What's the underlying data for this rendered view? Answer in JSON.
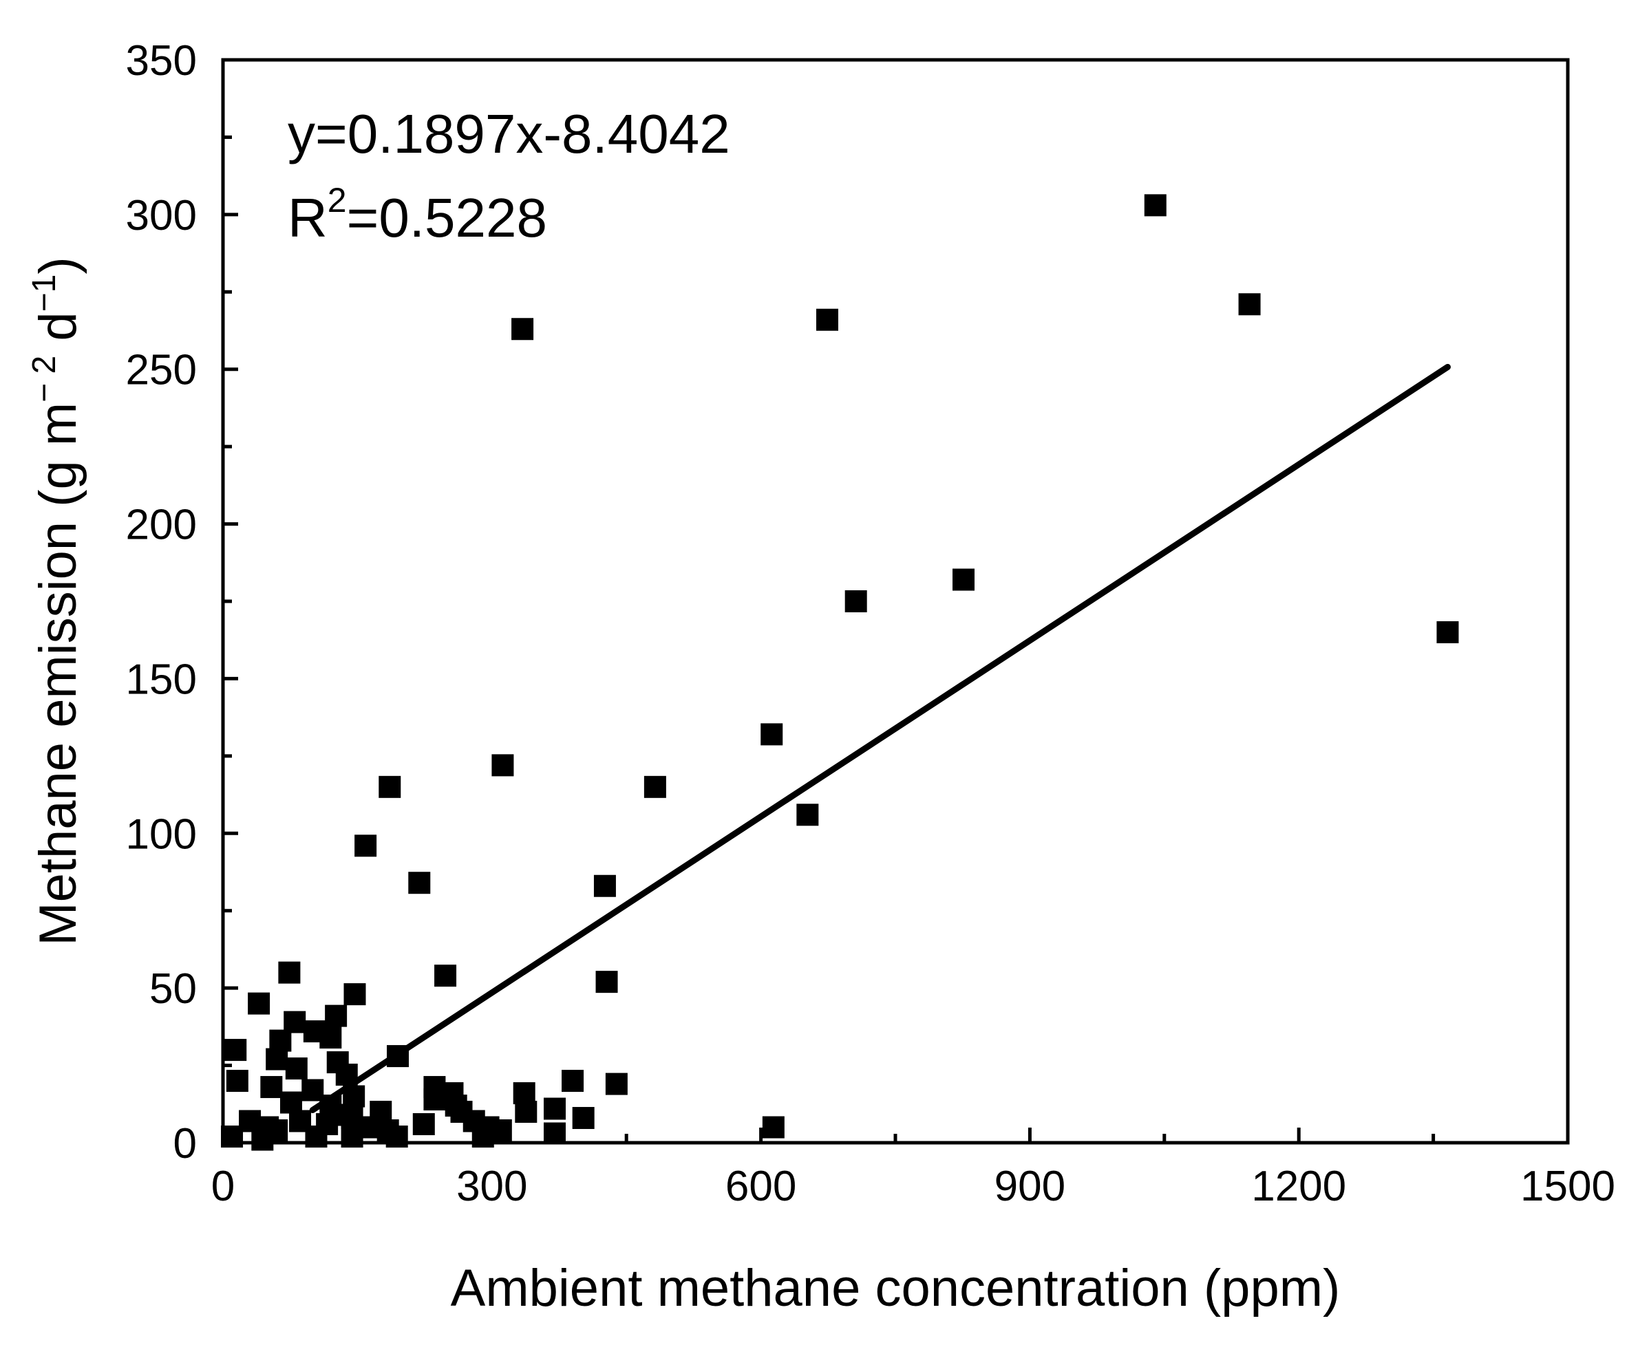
{
  "chart_data": {
    "type": "scatter",
    "xlabel": "Ambient methane concentration (ppm)",
    "ylabel": {
      "main": "Methane emission (g m",
      "exp1": "− 2",
      "mid": " d",
      "exp2": "−1",
      "end": ")"
    },
    "xlim": [
      0,
      1500
    ],
    "ylim": [
      0,
      350
    ],
    "xticks": [
      0,
      300,
      600,
      900,
      1200,
      1500
    ],
    "yticks": [
      0,
      50,
      100,
      150,
      200,
      250,
      300,
      350
    ],
    "grid": false,
    "legend": "none",
    "marker": "square",
    "colors": {
      "marker": "#000000",
      "line": "#000000",
      "axes": "#000000"
    },
    "annotation": {
      "equation": "y=0.1897x-8.4042",
      "r2_prefix": "R",
      "r2_sup": "2",
      "r2_value": "=0.5228"
    },
    "fit_line": {
      "slope": 0.1897,
      "intercept": -8.4042,
      "x_start": 100,
      "x_end": 1366
    },
    "points": [
      [
        1040,
        303
      ],
      [
        1145,
        271
      ],
      [
        674,
        266
      ],
      [
        334,
        263
      ],
      [
        1366,
        165
      ],
      [
        826,
        182
      ],
      [
        706,
        175
      ],
      [
        612,
        132
      ],
      [
        482,
        115
      ],
      [
        312,
        122
      ],
      [
        186,
        115
      ],
      [
        652,
        106
      ],
      [
        159,
        96
      ],
      [
        219,
        84
      ],
      [
        426,
        83
      ],
      [
        428,
        52
      ],
      [
        248,
        54
      ],
      [
        74,
        55
      ],
      [
        147,
        48
      ],
      [
        40,
        45
      ],
      [
        126,
        41
      ],
      [
        80,
        39
      ],
      [
        102,
        36
      ],
      [
        120,
        34
      ],
      [
        64,
        33
      ],
      [
        14,
        30
      ],
      [
        195,
        28
      ],
      [
        60,
        27
      ],
      [
        128,
        26
      ],
      [
        82,
        24
      ],
      [
        138,
        22
      ],
      [
        16,
        20
      ],
      [
        390,
        20
      ],
      [
        439,
        19
      ],
      [
        236,
        18
      ],
      [
        54,
        18
      ],
      [
        100,
        17
      ],
      [
        256,
        16
      ],
      [
        336,
        16
      ],
      [
        146,
        15
      ],
      [
        236,
        14
      ],
      [
        76,
        13
      ],
      [
        120,
        12
      ],
      [
        260,
        12
      ],
      [
        370,
        11
      ],
      [
        176,
        10
      ],
      [
        266,
        10
      ],
      [
        338,
        10
      ],
      [
        130,
        9
      ],
      [
        144,
        8
      ],
      [
        402,
        8
      ],
      [
        30,
        7
      ],
      [
        86,
        7
      ],
      [
        280,
        7
      ],
      [
        116,
        6
      ],
      [
        224,
        6
      ],
      [
        50,
        5
      ],
      [
        162,
        5
      ],
      [
        296,
        5
      ],
      [
        614,
        5
      ],
      [
        60,
        4
      ],
      [
        184,
        4
      ],
      [
        310,
        4
      ],
      [
        370,
        3
      ],
      [
        10,
        2
      ],
      [
        194,
        2
      ],
      [
        104,
        2
      ],
      [
        144,
        2
      ],
      [
        290,
        2
      ],
      [
        44,
        1
      ]
    ]
  }
}
